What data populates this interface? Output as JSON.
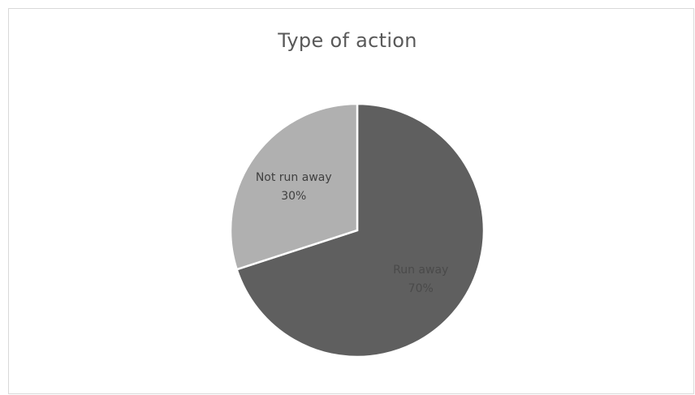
{
  "chart_data": {
    "type": "pie",
    "title": "Type of action",
    "slices": [
      {
        "label": "Run away",
        "value": 70,
        "percent_label": "70%",
        "color": "#5f5f5f",
        "label_color": "#4a4a4a"
      },
      {
        "label": "Not run away",
        "value": 30,
        "percent_label": "30%",
        "color": "#b0b0b0",
        "label_color": "#404040"
      }
    ],
    "start": "12 o'clock",
    "direction": "clockwise",
    "legend": "none",
    "data_labels": "inside"
  }
}
